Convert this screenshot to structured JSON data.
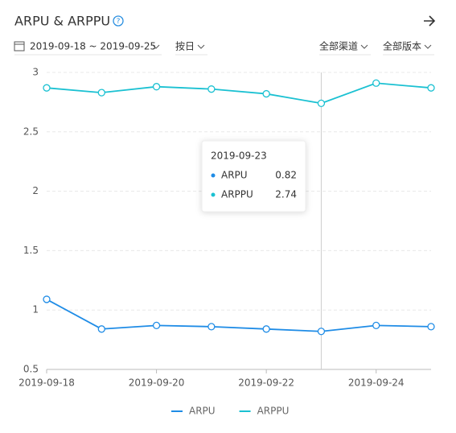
{
  "header": {
    "title": "ARPU & ARPPU",
    "date_range": "2019-09-18 ~ 2019-09-25",
    "granularity": "按日",
    "channel": "全部渠道",
    "version": "全部版本"
  },
  "chart_data": {
    "type": "line",
    "x": [
      "2019-09-18",
      "2019-09-19",
      "2019-09-20",
      "2019-09-21",
      "2019-09-22",
      "2019-09-23",
      "2019-09-24",
      "2019-09-25"
    ],
    "xticks": [
      "2019-09-18",
      "2019-09-20",
      "2019-09-22",
      "2019-09-24"
    ],
    "ylim": [
      0.5,
      3
    ],
    "yticks": [
      0.5,
      1,
      1.5,
      2,
      2.5,
      3
    ],
    "grid": true,
    "series": [
      {
        "name": "ARPU",
        "color": "#1f8ce6",
        "values": [
          1.09,
          0.84,
          0.87,
          0.86,
          0.84,
          0.82,
          0.87,
          0.86
        ]
      },
      {
        "name": "ARPPU",
        "color": "#1bc1d2",
        "values": [
          2.87,
          2.83,
          2.88,
          2.86,
          2.82,
          2.74,
          2.91,
          2.87
        ]
      }
    ],
    "tooltip": {
      "title": "2019-09-23",
      "items": [
        {
          "name": "ARPU",
          "value": 0.82
        },
        {
          "name": "ARPPU",
          "value": 2.74
        }
      ]
    }
  }
}
